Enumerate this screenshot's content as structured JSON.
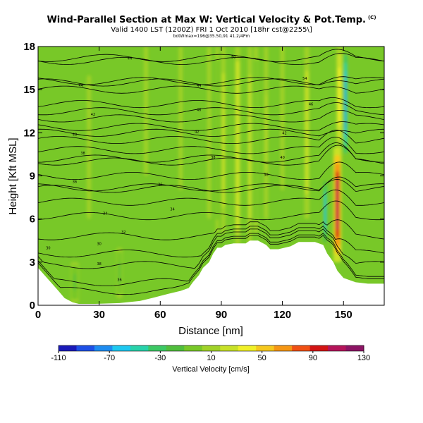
{
  "header": {
    "title": "Wind-Parallel Section at Max W: Vertical Velocity & Pot.Temp.",
    "copyright": "(C)",
    "valid": "Valid 1400 LST (1200Z) FRI 1 Oct 2010 [18hr cst@2255\\]",
    "subtitle": "botWmax=196@35.50,91 41.2/4Pm"
  },
  "colors": {
    "terrain": "#ffffff",
    "contour": "#000000",
    "background": "#78c828"
  },
  "chart_data": {
    "type": "heatmap",
    "xlabel": "Distance [nm]",
    "ylabel": "Height [Kft MSL]",
    "xlim": [
      0,
      170
    ],
    "ylim": [
      0,
      18
    ],
    "xticks": [
      0,
      30,
      60,
      90,
      120,
      150
    ],
    "yticks": [
      0,
      3,
      6,
      9,
      12,
      15,
      18
    ],
    "colorbar": {
      "label": "Vertical Velocity [cm/s]",
      "ticks": [
        -110,
        -70,
        -30,
        10,
        50,
        90,
        130
      ],
      "range": [
        -110,
        130
      ],
      "colors": [
        "#1a1ab8",
        "#1e50e6",
        "#1e8cf0",
        "#1ec8f0",
        "#28d2aa",
        "#3cc864",
        "#50be3c",
        "#78c828",
        "#a0d228",
        "#c8e128",
        "#f0f028",
        "#f5c81e",
        "#f59614",
        "#f05014",
        "#d21414",
        "#b4145a",
        "#8c1464"
      ]
    },
    "terrain_profile": {
      "x": [
        0,
        5,
        10,
        13,
        17,
        20,
        28,
        40,
        50,
        56,
        64,
        70,
        74,
        76,
        79,
        81,
        84,
        86,
        88,
        90,
        92,
        96,
        102,
        104,
        108,
        112,
        114,
        118,
        124,
        128,
        136,
        140,
        142,
        145,
        147,
        150,
        156,
        162,
        170
      ],
      "height": [
        2.6,
        1.8,
        1.0,
        0.5,
        0.2,
        0.1,
        0.1,
        0.15,
        0.3,
        0.5,
        0.8,
        1.0,
        1.2,
        1.6,
        2.1,
        2.6,
        3.0,
        3.6,
        4.0,
        4.0,
        4.2,
        4.3,
        4.3,
        4.5,
        4.5,
        4.2,
        3.9,
        3.9,
        4.1,
        4.4,
        4.4,
        4.2,
        3.6,
        3.0,
        2.4,
        1.9,
        1.6,
        1.5,
        1.5
      ]
    },
    "updrafts": [
      {
        "x": 147,
        "width": 4,
        "zmin": 3,
        "zmax": 11,
        "peak": 110
      },
      {
        "x": 148,
        "width": 3,
        "zmin": 11,
        "zmax": 18,
        "peak": 45
      },
      {
        "x": 98,
        "width": 2.5,
        "zmin": 4,
        "zmax": 18,
        "peak": 30
      },
      {
        "x": 104,
        "width": 2,
        "zmin": 4,
        "zmax": 18,
        "peak": 25
      },
      {
        "x": 91,
        "width": 2,
        "zmin": 5,
        "zmax": 18,
        "peak": 22
      },
      {
        "x": 112,
        "width": 2,
        "zmin": 6,
        "zmax": 18,
        "peak": 18
      },
      {
        "x": 132,
        "width": 2.5,
        "zmin": 6,
        "zmax": 18,
        "peak": 22
      },
      {
        "x": 120,
        "width": 2,
        "zmin": 8,
        "zmax": 18,
        "peak": 15
      },
      {
        "x": 84,
        "width": 2,
        "zmin": 6,
        "zmax": 18,
        "peak": 15
      },
      {
        "x": 70,
        "width": 2,
        "zmin": 8,
        "zmax": 18,
        "peak": 10
      },
      {
        "x": 53,
        "width": 2,
        "zmin": 9,
        "zmax": 18,
        "peak": 10
      },
      {
        "x": 25,
        "width": 2,
        "zmin": 6,
        "zmax": 16,
        "peak": 8
      }
    ],
    "downdrafts": [
      {
        "x": 141,
        "width": 2,
        "zmin": 4,
        "zmax": 9,
        "peak": -60
      },
      {
        "x": 151,
        "width": 2,
        "zmin": 10,
        "zmax": 18,
        "peak": -80
      },
      {
        "x": 107,
        "width": 2,
        "zmin": 5,
        "zmax": 18,
        "peak": -10
      },
      {
        "x": 88,
        "width": 1.5,
        "zmin": 5,
        "zmax": 18,
        "peak": -8
      },
      {
        "x": 40,
        "width": 3,
        "zmin": 0.5,
        "zmax": 4,
        "peak": -15
      },
      {
        "x": 18,
        "width": 4,
        "zmin": 0.2,
        "zmax": 3,
        "peak": -12
      }
    ],
    "theta_contours": [
      {
        "label": "36",
        "z": 1.0,
        "lx": 40,
        "lz": 1.8
      },
      {
        "label": "38",
        "z": 1.6,
        "lx": 30,
        "lz": 2.9
      },
      {
        "label": "30",
        "z": 2.8,
        "lx": 5,
        "lz": 4.0
      },
      {
        "label": "30",
        "z": 3.6,
        "lx": 30,
        "lz": 4.3
      },
      {
        "label": "32",
        "z": 4.8,
        "lx": 42,
        "lz": 5.1
      },
      {
        "label": "34",
        "z": 6.2,
        "lx": 33,
        "lz": 6.4
      },
      {
        "label": "34",
        "z": 7.2,
        "lx": 66,
        "lz": 6.7
      },
      {
        "label": "36",
        "z": 8.1,
        "lx": 18,
        "lz": 8.6
      },
      {
        "label": "36",
        "z": 8.2,
        "lx": 60,
        "lz": 8.4
      },
      {
        "label": "38",
        "z": 9.0,
        "lx": 112,
        "lz": 9.1
      },
      {
        "label": "38",
        "z": 10.0,
        "lx": 22,
        "lz": 10.6
      },
      {
        "label": "38",
        "z": 10.2,
        "lx": 86,
        "lz": 10.3
      },
      {
        "label": "40",
        "z": 10.8,
        "lx": 120,
        "lz": 10.3
      },
      {
        "label": "40",
        "z": 11.5,
        "lx": 18,
        "lz": 11.9
      },
      {
        "label": "42",
        "z": 12.0,
        "lx": 78,
        "lz": 12.1
      },
      {
        "label": "42",
        "z": 12.4,
        "lx": 121,
        "lz": 12.0
      },
      {
        "label": "42",
        "z": 13.0,
        "lx": 27,
        "lz": 13.3
      },
      {
        "label": "46",
        "z": 13.5,
        "lx": 79,
        "lz": 13.6
      },
      {
        "label": "46",
        "z": 14.0,
        "lx": 134,
        "lz": 14.0
      },
      {
        "label": "44",
        "z": 15.0,
        "lx": 21,
        "lz": 15.3
      },
      {
        "label": "44",
        "z": 15.5,
        "lx": 79,
        "lz": 15.3
      },
      {
        "label": "54",
        "z": 15.6,
        "lx": 131,
        "lz": 15.8
      },
      {
        "label": "44",
        "z": 17.0,
        "lx": 45,
        "lz": 17.2
      },
      {
        "label": "50",
        "z": 17.2,
        "lx": 96,
        "lz": 17.3
      }
    ]
  }
}
